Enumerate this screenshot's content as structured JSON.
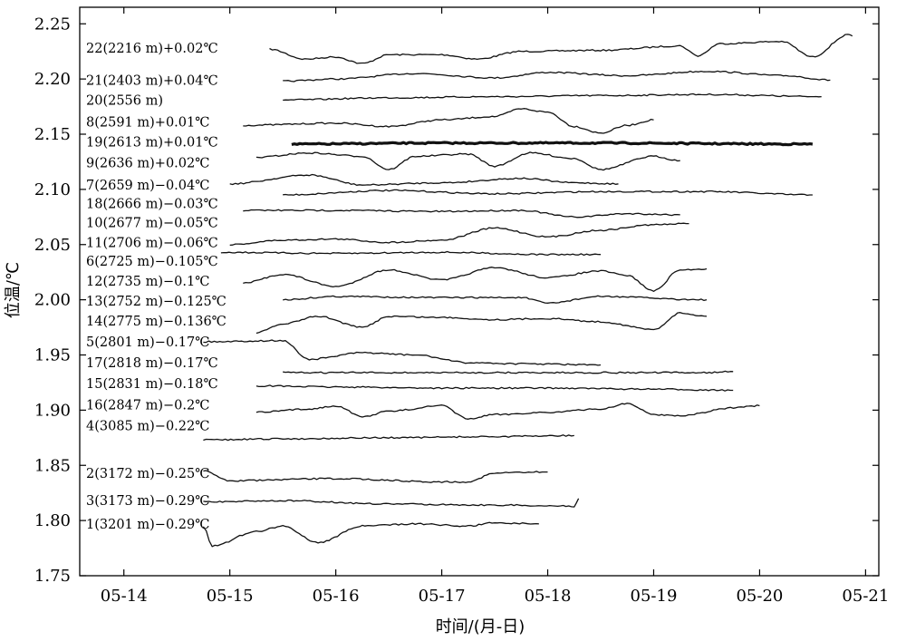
{
  "chart_data": {
    "type": "line",
    "title": "",
    "xlabel": "时间/(月-日)",
    "ylabel": "位温/℃",
    "x_tick_labels": [
      "05-14",
      "05-15",
      "05-16",
      "05-17",
      "05-18",
      "05-19",
      "05-20",
      "05-21"
    ],
    "x_ticks": [
      "2000-05-14",
      "2000-05-15",
      "2000-05-16",
      "2000-05-17",
      "2000-05-18",
      "2000-05-19",
      "2000-05-20",
      "2000-05-21"
    ],
    "xlim": [
      "2000-05-13 14:00",
      "2000-05-21 03:00"
    ],
    "y_tick_labels": [
      "1.75",
      "1.80",
      "1.85",
      "1.90",
      "1.95",
      "2.00",
      "2.05",
      "2.10",
      "2.15",
      "2.20",
      "2.25"
    ],
    "y_ticks": [
      1.75,
      1.8,
      1.85,
      1.9,
      1.95,
      2.0,
      2.05,
      2.1,
      2.15,
      2.2,
      2.25
    ],
    "ylim": [
      1.75,
      2.265
    ],
    "grid": false,
    "legend": "none",
    "series": [
      {
        "name": "22(2216 m)+0.02℃",
        "label_y": 2.228,
        "points": [
          [
            "2000-05-15 09:00",
            2.227
          ],
          [
            "2000-05-15 17:00",
            2.218
          ],
          [
            "2000-05-16 00:00",
            2.22
          ],
          [
            "2000-05-16 06:00",
            2.214
          ],
          [
            "2000-05-16 12:00",
            2.222
          ],
          [
            "2000-05-17 00:00",
            2.222
          ],
          [
            "2000-05-17 08:00",
            2.218
          ],
          [
            "2000-05-17 18:00",
            2.225
          ],
          [
            "2000-05-18 12:00",
            2.226
          ],
          [
            "2000-05-19 06:00",
            2.23
          ],
          [
            "2000-05-19 10:00",
            2.221
          ],
          [
            "2000-05-19 15:00",
            2.232
          ],
          [
            "2000-05-20 05:00",
            2.234
          ],
          [
            "2000-05-20 12:00",
            2.22
          ],
          [
            "2000-05-20 20:00",
            2.24
          ],
          [
            "2000-05-20 21:00",
            2.239
          ]
        ]
      },
      {
        "name": "21(2403 m)+0.04℃",
        "label_y": 2.199,
        "points": [
          [
            "2000-05-15 12:00",
            2.198
          ],
          [
            "2000-05-16 00:00",
            2.2
          ],
          [
            "2000-05-16 18:00",
            2.205
          ],
          [
            "2000-05-17 12:00",
            2.201
          ],
          [
            "2000-05-18 00:00",
            2.206
          ],
          [
            "2000-05-18 18:00",
            2.203
          ],
          [
            "2000-05-19 12:00",
            2.207
          ],
          [
            "2000-05-20 06:00",
            2.203
          ],
          [
            "2000-05-20 16:00",
            2.199
          ]
        ]
      },
      {
        "name": "20(2556 m)",
        "label_y": 2.181,
        "points": [
          [
            "2000-05-15 12:00",
            2.181
          ],
          [
            "2000-05-16 12:00",
            2.183
          ],
          [
            "2000-05-17 12:00",
            2.184
          ],
          [
            "2000-05-18 12:00",
            2.185
          ],
          [
            "2000-05-19 12:00",
            2.186
          ],
          [
            "2000-05-20 14:00",
            2.184
          ]
        ]
      },
      {
        "name": "8(2591 m)+0.01℃",
        "label_y": 2.161,
        "points": [
          [
            "2000-05-15 03:00",
            2.158
          ],
          [
            "2000-05-16 00:00",
            2.16
          ],
          [
            "2000-05-16 12:00",
            2.157
          ],
          [
            "2000-05-17 00:00",
            2.163
          ],
          [
            "2000-05-17 12:00",
            2.166
          ],
          [
            "2000-05-17 18:00",
            2.173
          ],
          [
            "2000-05-18 00:00",
            2.17
          ],
          [
            "2000-05-18 06:00",
            2.157
          ],
          [
            "2000-05-18 12:00",
            2.151
          ],
          [
            "2000-05-18 18:00",
            2.158
          ],
          [
            "2000-05-19 00:00",
            2.163
          ]
        ]
      },
      {
        "name": "19(2613 m)+0.01℃",
        "label_y": 2.143,
        "points": [
          [
            "2000-05-15 14:00",
            2.141
          ],
          [
            "2000-05-17 00:00",
            2.142
          ],
          [
            "2000-05-18 12:00",
            2.142
          ],
          [
            "2000-05-20 12:00",
            2.141
          ]
        ]
      },
      {
        "name": "9(2636 m)+0.02℃",
        "label_y": 2.124,
        "points": [
          [
            "2000-05-15 06:00",
            2.129
          ],
          [
            "2000-05-15 18:00",
            2.133
          ],
          [
            "2000-05-16 06:00",
            2.13
          ],
          [
            "2000-05-16 12:00",
            2.118
          ],
          [
            "2000-05-16 18:00",
            2.13
          ],
          [
            "2000-05-17 06:00",
            2.132
          ],
          [
            "2000-05-17 12:00",
            2.121
          ],
          [
            "2000-05-17 20:00",
            2.133
          ],
          [
            "2000-05-18 06:00",
            2.128
          ],
          [
            "2000-05-18 12:00",
            2.118
          ],
          [
            "2000-05-19 00:00",
            2.13
          ],
          [
            "2000-05-19 06:00",
            2.126
          ]
        ]
      },
      {
        "name": "7(2659 m)−0.04℃",
        "label_y": 2.104,
        "points": [
          [
            "2000-05-15 00:00",
            2.105
          ],
          [
            "2000-05-15 18:00",
            2.113
          ],
          [
            "2000-05-16 06:00",
            2.104
          ],
          [
            "2000-05-17 00:00",
            2.106
          ],
          [
            "2000-05-17 18:00",
            2.11
          ],
          [
            "2000-05-18 06:00",
            2.106
          ],
          [
            "2000-05-18 16:00",
            2.105
          ]
        ]
      },
      {
        "name": "18(2666 m)−0.03℃",
        "label_y": 2.087,
        "points": [
          [
            "2000-05-15 12:00",
            2.095
          ],
          [
            "2000-05-16 12:00",
            2.099
          ],
          [
            "2000-05-17 12:00",
            2.096
          ],
          [
            "2000-05-18 12:00",
            2.098
          ],
          [
            "2000-05-19 12:00",
            2.098
          ],
          [
            "2000-05-20 12:00",
            2.095
          ]
        ]
      },
      {
        "name": "10(2677 m)−0.05℃",
        "label_y": 2.07,
        "points": [
          [
            "2000-05-15 03:00",
            2.081
          ],
          [
            "2000-05-16 00:00",
            2.081
          ],
          [
            "2000-05-17 00:00",
            2.08
          ],
          [
            "2000-05-17 18:00",
            2.081
          ],
          [
            "2000-05-18 06:00",
            2.075
          ],
          [
            "2000-05-18 18:00",
            2.078
          ],
          [
            "2000-05-19 06:00",
            2.077
          ]
        ]
      },
      {
        "name": "11(2706 m)−0.06℃",
        "label_y": 2.052,
        "points": [
          [
            "2000-05-15 00:00",
            2.05
          ],
          [
            "2000-05-15 12:00",
            2.054
          ],
          [
            "2000-05-16 00:00",
            2.055
          ],
          [
            "2000-05-16 12:00",
            2.052
          ],
          [
            "2000-05-17 00:00",
            2.054
          ],
          [
            "2000-05-17 12:00",
            2.065
          ],
          [
            "2000-05-18 00:00",
            2.057
          ],
          [
            "2000-05-18 12:00",
            2.063
          ],
          [
            "2000-05-19 00:00",
            2.068
          ],
          [
            "2000-05-19 08:00",
            2.069
          ]
        ]
      },
      {
        "name": "6(2725 m)−0.105℃",
        "label_y": 2.035,
        "points": [
          [
            "2000-05-14 22:00",
            2.043
          ],
          [
            "2000-05-16 00:00",
            2.042
          ],
          [
            "2000-05-17 00:00",
            2.043
          ],
          [
            "2000-05-18 00:00",
            2.041
          ],
          [
            "2000-05-18 12:00",
            2.041
          ]
        ]
      },
      {
        "name": "12(2735 m)−0.1℃",
        "label_y": 2.017,
        "points": [
          [
            "2000-05-15 03:00",
            2.015
          ],
          [
            "2000-05-15 12:00",
            2.023
          ],
          [
            "2000-05-16 00:00",
            2.012
          ],
          [
            "2000-05-16 12:00",
            2.027
          ],
          [
            "2000-05-17 00:00",
            2.018
          ],
          [
            "2000-05-17 12:00",
            2.029
          ],
          [
            "2000-05-18 00:00",
            2.02
          ],
          [
            "2000-05-18 12:00",
            2.026
          ],
          [
            "2000-05-18 18:00",
            2.022
          ],
          [
            "2000-05-19 00:00",
            2.008
          ],
          [
            "2000-05-19 06:00",
            2.027
          ],
          [
            "2000-05-19 12:00",
            2.028
          ]
        ]
      },
      {
        "name": "13(2752 m)−0.125℃",
        "label_y": 1.999,
        "points": [
          [
            "2000-05-15 12:00",
            2.0
          ],
          [
            "2000-05-16 00:00",
            2.003
          ],
          [
            "2000-05-17 00:00",
            2.002
          ],
          [
            "2000-05-17 18:00",
            2.002
          ],
          [
            "2000-05-18 00:00",
            1.997
          ],
          [
            "2000-05-18 12:00",
            2.003
          ],
          [
            "2000-05-19 12:00",
            2.0
          ]
        ]
      },
      {
        "name": "14(2775 m)−0.136℃",
        "label_y": 1.981,
        "points": [
          [
            "2000-05-15 06:00",
            1.97
          ],
          [
            "2000-05-15 12:00",
            1.978
          ],
          [
            "2000-05-15 20:00",
            1.985
          ],
          [
            "2000-05-16 06:00",
            1.975
          ],
          [
            "2000-05-16 12:00",
            1.985
          ],
          [
            "2000-05-17 00:00",
            1.984
          ],
          [
            "2000-05-17 12:00",
            1.982
          ],
          [
            "2000-05-18 00:00",
            1.983
          ],
          [
            "2000-05-18 12:00",
            1.98
          ],
          [
            "2000-05-19 00:00",
            1.973
          ],
          [
            "2000-05-19 06:00",
            1.988
          ],
          [
            "2000-05-19 12:00",
            1.985
          ]
        ]
      },
      {
        "name": "5(2801 m)−0.17℃",
        "label_y": 1.962,
        "points": [
          [
            "2000-05-14 18:00",
            1.962
          ],
          [
            "2000-05-15 12:00",
            1.963
          ],
          [
            "2000-05-15 18:00",
            1.946
          ],
          [
            "2000-05-16 06:00",
            1.952
          ],
          [
            "2000-05-16 18:00",
            1.95
          ],
          [
            "2000-05-17 06:00",
            1.943
          ],
          [
            "2000-05-17 18:00",
            1.942
          ],
          [
            "2000-05-18 12:00",
            1.941
          ]
        ]
      },
      {
        "name": "17(2818 m)−0.17℃",
        "label_y": 1.943,
        "points": [
          [
            "2000-05-15 12:00",
            1.934
          ],
          [
            "2000-05-16 12:00",
            1.934
          ],
          [
            "2000-05-17 12:00",
            1.934
          ],
          [
            "2000-05-18 12:00",
            1.934
          ],
          [
            "2000-05-19 12:00",
            1.934
          ],
          [
            "2000-05-19 18:00",
            1.935
          ]
        ]
      },
      {
        "name": "15(2831 m)−0.18℃",
        "label_y": 1.924,
        "points": [
          [
            "2000-05-15 06:00",
            1.922
          ],
          [
            "2000-05-16 00:00",
            1.921
          ],
          [
            "2000-05-17 00:00",
            1.92
          ],
          [
            "2000-05-18 00:00",
            1.92
          ],
          [
            "2000-05-19 00:00",
            1.919
          ],
          [
            "2000-05-19 18:00",
            1.918
          ]
        ]
      },
      {
        "name": "16(2847 m)−0.2℃",
        "label_y": 1.905,
        "points": [
          [
            "2000-05-15 06:00",
            1.898
          ],
          [
            "2000-05-15 18:00",
            1.901
          ],
          [
            "2000-05-16 00:00",
            1.904
          ],
          [
            "2000-05-16 06:00",
            1.894
          ],
          [
            "2000-05-16 12:00",
            1.899
          ],
          [
            "2000-05-17 00:00",
            1.904
          ],
          [
            "2000-05-17 06:00",
            1.892
          ],
          [
            "2000-05-17 12:00",
            1.896
          ],
          [
            "2000-05-18 00:00",
            1.898
          ],
          [
            "2000-05-18 12:00",
            1.901
          ],
          [
            "2000-05-18 18:00",
            1.906
          ],
          [
            "2000-05-19 00:00",
            1.896
          ],
          [
            "2000-05-19 06:00",
            1.895
          ],
          [
            "2000-05-19 18:00",
            1.902
          ],
          [
            "2000-05-20 00:00",
            1.904
          ]
        ]
      },
      {
        "name": "4(3085 m)−0.22℃",
        "label_y": 1.886,
        "points": [
          [
            "2000-05-14 18:00",
            1.873
          ],
          [
            "2000-05-15 12:00",
            1.874
          ],
          [
            "2000-05-16 12:00",
            1.875
          ],
          [
            "2000-05-17 12:00",
            1.876
          ],
          [
            "2000-05-18 06:00",
            1.877
          ]
        ]
      },
      {
        "name": "2(3172 m)−0.25℃",
        "label_y": 1.843,
        "points": [
          [
            "2000-05-14 18:00",
            1.845
          ],
          [
            "2000-05-15 00:00",
            1.836
          ],
          [
            "2000-05-16 00:00",
            1.838
          ],
          [
            "2000-05-17 00:00",
            1.835
          ],
          [
            "2000-05-17 06:00",
            1.835
          ],
          [
            "2000-05-17 12:00",
            1.843
          ],
          [
            "2000-05-18 00:00",
            1.844
          ]
        ]
      },
      {
        "name": "3(3173 m)−0.29℃",
        "label_y": 1.818,
        "points": [
          [
            "2000-05-14 18:00",
            1.817
          ],
          [
            "2000-05-15 12:00",
            1.818
          ],
          [
            "2000-05-16 12:00",
            1.815
          ],
          [
            "2000-05-17 12:00",
            1.814
          ],
          [
            "2000-05-18 06:00",
            1.813
          ],
          [
            "2000-05-18 07:00",
            1.82
          ]
        ]
      },
      {
        "name": "1(3201 m)−0.29℃",
        "label_y": 1.797,
        "points": [
          [
            "2000-05-14 18:00",
            1.795
          ],
          [
            "2000-05-14 20:00",
            1.777
          ],
          [
            "2000-05-15 06:00",
            1.79
          ],
          [
            "2000-05-15 12:00",
            1.795
          ],
          [
            "2000-05-15 20:00",
            1.78
          ],
          [
            "2000-05-16 06:00",
            1.795
          ],
          [
            "2000-05-16 18:00",
            1.797
          ],
          [
            "2000-05-17 06:00",
            1.795
          ],
          [
            "2000-05-17 12:00",
            1.798
          ],
          [
            "2000-05-17 22:00",
            1.797
          ]
        ]
      }
    ]
  }
}
